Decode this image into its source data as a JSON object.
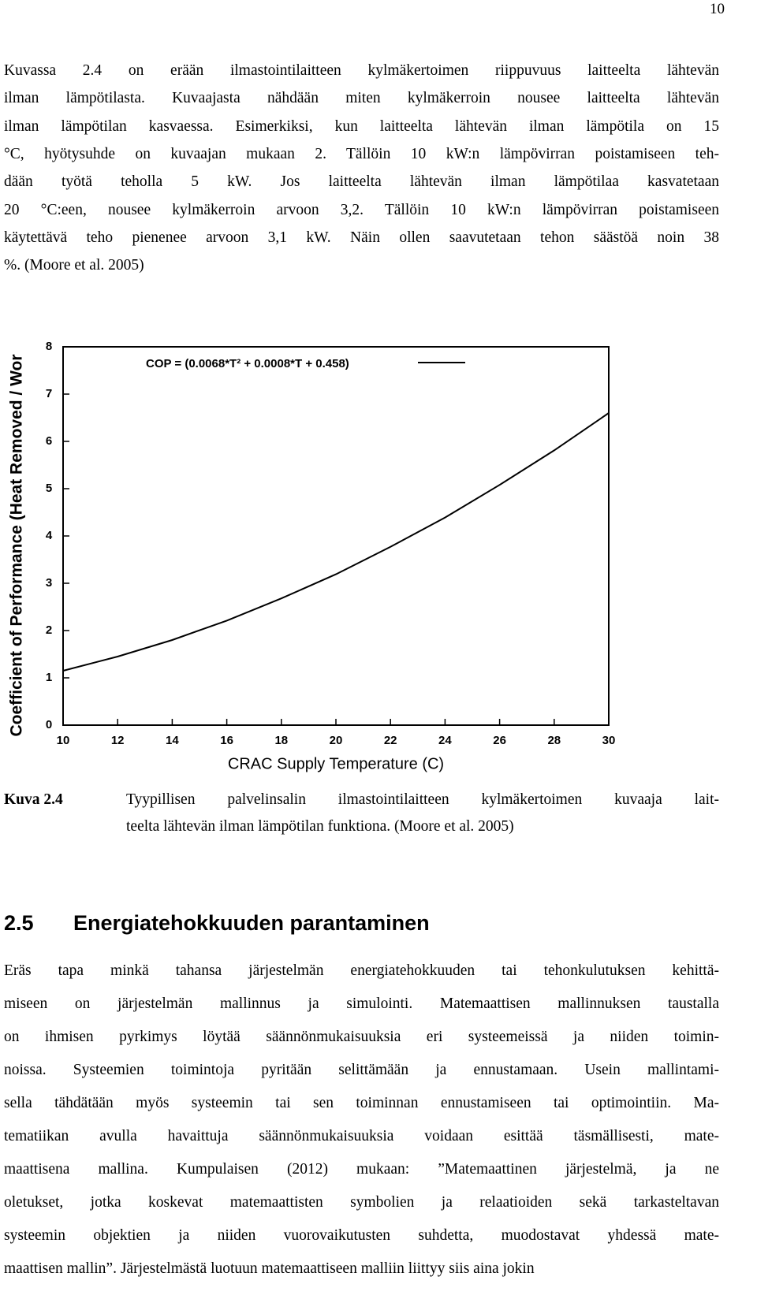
{
  "page_number": "10",
  "intro": {
    "lines": [
      "Kuvassa 2.4 on erään ilmastointilaitteen kylmäkertoimen riippuvuus laitteelta lähtevän",
      "ilman lämpötilasta. Kuvaajasta nähdään miten kylmäkerroin nousee laitteelta lähtevän",
      "ilman lämpötilan kasvaessa. Esimerkiksi, kun laitteelta lähtevän ilman lämpötila on 15",
      "°C, hyötysuhde on kuvaajan mukaan 2. Tällöin 10 kW:n lämpövirran poistamiseen teh-",
      "dään työtä teholla 5 kW. Jos laitteelta lähtevän ilman lämpötilaa kasvatetaan",
      "20 °C:een, nousee kylmäkerroin arvoon 3,2. Tällöin 10 kW:n lämpövirran poistamiseen",
      "käytettävä teho pienenee arvoon 3,1 kW. Näin ollen saavutetaan tehon säästöä noin 38",
      "%. (Moore et al. 2005)"
    ]
  },
  "chart_data": {
    "type": "line",
    "x_label": "CRAC Supply Temperature (C)",
    "y_label": "Coefficient of Performance (Heat Removed / Wor",
    "x": [
      10,
      12,
      14,
      16,
      18,
      20,
      22,
      24,
      26,
      28,
      30
    ],
    "series": [
      {
        "name": "COP = (0.0068*T² + 0.0008*T + 0.458)",
        "color": "#000000",
        "values": [
          1.15,
          1.45,
          1.8,
          2.21,
          2.68,
          3.19,
          3.77,
          4.39,
          5.08,
          5.81,
          6.6
        ]
      }
    ],
    "xlim": [
      10,
      30
    ],
    "ylim": [
      0,
      8
    ],
    "xticks": [
      10,
      12,
      14,
      16,
      18,
      20,
      22,
      24,
      26,
      28,
      30
    ],
    "yticks": [
      0,
      1,
      2,
      3,
      4,
      5,
      6,
      7,
      8
    ],
    "grid": false,
    "legend": "top"
  },
  "caption": {
    "label": "Kuva 2.4",
    "lines": [
      "Tyypillisen palvelinsalin ilmastointilaitteen kylmäkertoimen kuvaaja lait-",
      "teelta lähtevän ilman lämpötilan funktiona. (Moore et al. 2005)"
    ]
  },
  "section": {
    "number": "2.5",
    "title": "Energiatehokkuuden parantaminen"
  },
  "body": {
    "lines": [
      "Eräs tapa minkä tahansa järjestelmän energiatehokkuuden tai tehonkulutuksen kehittä-",
      "miseen on järjestelmän mallinnus ja simulointi. Matemaattisen mallinnuksen taustalla",
      "on ihmisen pyrkimys löytää säännönmukaisuuksia eri systeemeissä ja niiden toimin-",
      "noissa. Systeemien toimintoja pyritään selittämään ja ennustamaan. Usein mallintami-",
      "sella tähdätään myös systeemin tai sen toiminnan ennustamiseen tai optimointiin. Ma-",
      "tematiikan avulla havaittuja säännönmukaisuuksia voidaan esittää täsmällisesti, mate-",
      "maattisena mallina. Kumpulaisen (2012) mukaan: ”Matemaattinen järjestelmä, ja ne",
      "oletukset, jotka koskevat matemaattisten symbolien ja relaatioiden sekä tarkasteltavan",
      "systeemin objektien ja niiden vuorovaikutusten suhdetta, muodostavat yhdessä mate-",
      "maattisen mallin”. Järjestelmästä luotuun matemaattiseen malliin liittyy siis aina jokin"
    ]
  }
}
